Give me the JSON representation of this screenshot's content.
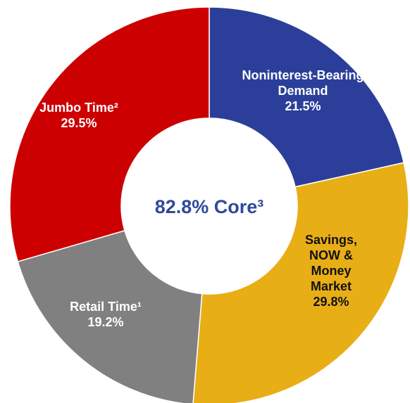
{
  "chart_data": {
    "type": "donut",
    "annotation": "82.8% Core³",
    "categories": [
      "Noninterest-Bearing Demand",
      "Savings, NOW & Money Market",
      "Retail Time¹",
      "Jumbo Time²"
    ],
    "values": [
      21.5,
      29.8,
      19.2,
      29.5
    ],
    "value_labels": [
      "21.5%",
      "29.8%",
      "19.2%",
      "29.5%"
    ],
    "colors": [
      "#2b3f9a",
      "#e8ae16",
      "#808080",
      "#cc0000"
    ]
  }
}
